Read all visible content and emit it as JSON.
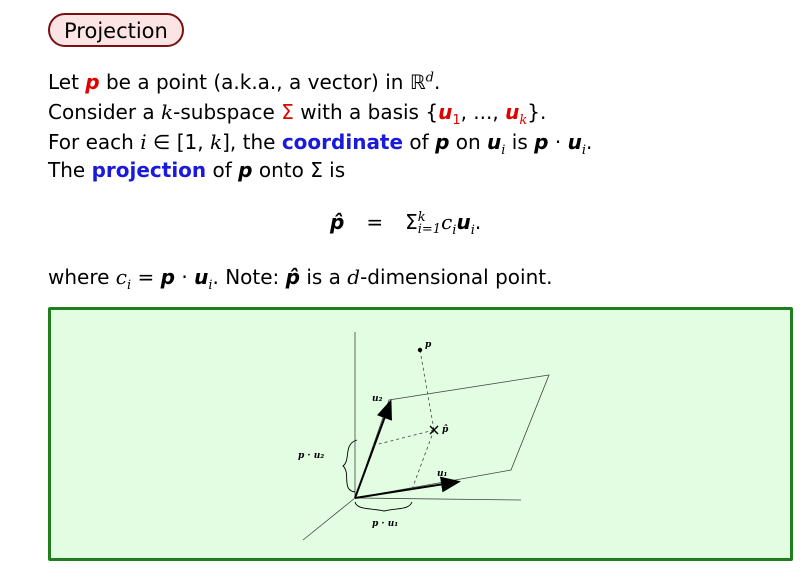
{
  "title": "Projection",
  "line1": {
    "pre": "Let ",
    "p": "p",
    "mid": " be a point (a.k.a., a vector) in ",
    "R": "ℝ",
    "d": "d",
    "post": "."
  },
  "line2": {
    "pre": "Consider a ",
    "k": "k",
    "mid": "-subspace ",
    "sigma": "Σ",
    "mid2": " with a basis {",
    "u": "u",
    "one": "1",
    "dots": ", ..., ",
    "k2": "k",
    "post": "}."
  },
  "line3": {
    "pre": "For each ",
    "i": "i",
    "mid": " ∈ [1, ",
    "k": "k",
    "mid2": "], the ",
    "coord": "coordinate",
    "of": " of ",
    "p": "p",
    "on": " on ",
    "u": "u",
    "isp": " is ",
    "dot": " · ",
    "post": "."
  },
  "line4": {
    "pre": "The ",
    "proj": "projection",
    "mid": " of ",
    "p": "p",
    "post": " onto Σ is"
  },
  "equation": {
    "lhs": "p̂",
    "eq": "=",
    "sum": "Σ",
    "upper": "k",
    "lower": "i=1",
    "term": "c",
    "post": "."
  },
  "line5": {
    "pre": "where ",
    "c": "c",
    "eq": " = ",
    "note": ". Note: ",
    "phat": "p̂",
    "mid": " is a ",
    "d": "d",
    "post": "-dimensional point."
  },
  "figure_labels": {
    "p": "p",
    "phat": "p̂",
    "u1": "u₁",
    "u2": "u₂",
    "pu1": "p · u₁",
    "pu2": "p · u₂"
  }
}
